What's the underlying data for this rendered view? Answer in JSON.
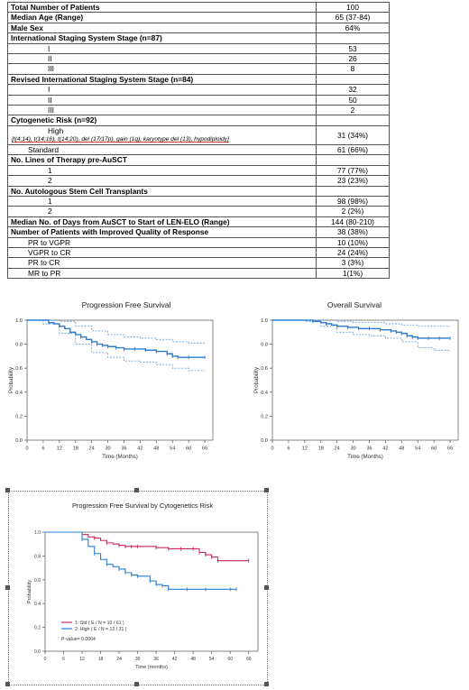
{
  "table": {
    "rows": [
      {
        "label": "Total Number of Patients",
        "value": "100",
        "style": "b"
      },
      {
        "label": "Median Age (Range)",
        "value": "65 (37-84)",
        "style": "b"
      },
      {
        "label": "Male Sex",
        "value": "64%",
        "style": "b"
      },
      {
        "label": "International Staging System Stage (n=87)",
        "value": "",
        "style": "b"
      },
      {
        "label": "I",
        "value": "53",
        "style": "i1"
      },
      {
        "label": "II",
        "value": "26",
        "style": "i1"
      },
      {
        "label": "III",
        "value": "8",
        "style": "i1"
      },
      {
        "label": "Revised International Staging System Stage (n=84)",
        "value": "",
        "style": "b"
      },
      {
        "label": "I",
        "value": "32",
        "style": "i1"
      },
      {
        "label": "II",
        "value": "50",
        "style": "i1"
      },
      {
        "label": "III",
        "value": "2",
        "style": "i1"
      },
      {
        "label": "Cytogenetic Risk (n=92)",
        "value": "",
        "style": "b"
      },
      {
        "label": "High",
        "value": "31 (34%)",
        "style": "high",
        "note": "[t(4;14), t(14;16), t(14;20), del (17/17p), gain (1q), karyotype del (13), hypodiploidy]"
      },
      {
        "label": "Standard",
        "value": "61 (66%)",
        "style": "i2"
      },
      {
        "label": "No. Lines of Therapy pre-AuSCT",
        "value": "",
        "style": "b"
      },
      {
        "label": "1",
        "value": "77 (77%)",
        "style": "i1"
      },
      {
        "label": "2",
        "value": "23 (23%)",
        "style": "i1"
      },
      {
        "label": "No. Autologous Stem Cell Transplants",
        "value": "",
        "style": "b"
      },
      {
        "label": "1",
        "value": "98 (98%)",
        "style": "i1"
      },
      {
        "label": "2",
        "value": "2 (2%)",
        "style": "i1"
      },
      {
        "label": "Median No. of Days from AuSCT to Start of LEN-ELO (Range)",
        "value": "144 (80-210)",
        "style": "b"
      },
      {
        "label": "Number of Patients with Improved Quality of Response",
        "value": "38 (38%)",
        "style": "b"
      },
      {
        "label": "PR to VGPR",
        "value": "10 (10%)",
        "style": "i2"
      },
      {
        "label": "VGPR to CR",
        "value": "24 (24%)",
        "style": "i2"
      },
      {
        "label": "PR to CR",
        "value": "3 (3%)",
        "style": "i2"
      },
      {
        "label": "MR to PR",
        "value": "1(1%)",
        "style": "i2"
      }
    ]
  },
  "chart_data": [
    {
      "type": "line",
      "title": "Progression Free Survival",
      "xlabel": "Time (Months)",
      "ylabel": "Probability",
      "xticks": [
        0,
        6,
        12,
        18,
        24,
        30,
        36,
        42,
        48,
        54,
        60,
        66
      ],
      "yticks": [
        "0.0",
        "0.2",
        "0.4",
        "0.6",
        "0.8",
        "1.0"
      ],
      "xlim": [
        0,
        69
      ],
      "ylim": [
        0,
        1
      ],
      "series": [
        {
          "x": [
            0,
            4,
            8,
            10,
            12,
            14,
            16,
            18,
            20,
            22,
            24,
            26,
            28,
            30,
            33,
            36,
            40,
            44,
            48,
            52,
            54,
            56,
            60,
            66
          ],
          "y": [
            1.0,
            1.0,
            0.98,
            0.97,
            0.95,
            0.93,
            0.9,
            0.88,
            0.86,
            0.84,
            0.82,
            0.8,
            0.79,
            0.78,
            0.77,
            0.76,
            0.76,
            0.75,
            0.74,
            0.72,
            0.7,
            0.69,
            0.69,
            0.69
          ]
        }
      ],
      "bands": [
        {
          "x": [
            0,
            6,
            12,
            18,
            24,
            30,
            36,
            42,
            48,
            54,
            60,
            66
          ],
          "y": [
            1.0,
            1.0,
            0.99,
            0.95,
            0.91,
            0.88,
            0.86,
            0.85,
            0.84,
            0.82,
            0.81,
            0.81
          ]
        },
        {
          "x": [
            0,
            6,
            12,
            18,
            24,
            30,
            36,
            42,
            48,
            54,
            60,
            66
          ],
          "y": [
            1.0,
            0.97,
            0.89,
            0.8,
            0.73,
            0.69,
            0.66,
            0.65,
            0.63,
            0.6,
            0.58,
            0.58
          ]
        }
      ],
      "color": "#2a7fd4"
    },
    {
      "type": "line",
      "title": "Overall Survival",
      "xlabel": "Time (Months)",
      "ylabel": "Probability",
      "xticks": [
        0,
        6,
        12,
        18,
        24,
        30,
        36,
        42,
        48,
        54,
        60,
        66
      ],
      "yticks": [
        "0.0",
        "0.2",
        "0.4",
        "0.6",
        "0.8",
        "1.0"
      ],
      "xlim": [
        0,
        69
      ],
      "ylim": [
        0,
        1
      ],
      "series": [
        {
          "x": [
            0,
            12,
            15,
            18,
            20,
            22,
            24,
            28,
            32,
            36,
            40,
            44,
            46,
            48,
            50,
            52,
            54,
            58,
            62,
            66
          ],
          "y": [
            1.0,
            1.0,
            0.99,
            0.98,
            0.97,
            0.96,
            0.95,
            0.94,
            0.93,
            0.93,
            0.92,
            0.91,
            0.9,
            0.89,
            0.87,
            0.86,
            0.85,
            0.85,
            0.85,
            0.85
          ]
        }
      ],
      "bands": [
        {
          "x": [
            0,
            12,
            18,
            24,
            30,
            36,
            42,
            48,
            54,
            60,
            66
          ],
          "y": [
            1.0,
            1.0,
            1.0,
            0.99,
            0.98,
            0.98,
            0.97,
            0.96,
            0.95,
            0.95,
            0.95
          ]
        },
        {
          "x": [
            0,
            12,
            18,
            24,
            30,
            36,
            42,
            48,
            54,
            60,
            66
          ],
          "y": [
            1.0,
            0.99,
            0.95,
            0.9,
            0.88,
            0.87,
            0.85,
            0.82,
            0.77,
            0.75,
            0.75
          ]
        }
      ],
      "color": "#2a7fd4"
    },
    {
      "type": "line",
      "title": "Progression Free Survival by Cytogenetics Risk",
      "xlabel": "Time (months)",
      "ylabel": "Probability",
      "xticks": [
        0,
        6,
        12,
        18,
        24,
        30,
        36,
        42,
        48,
        54,
        60,
        66
      ],
      "yticks": [
        "0.0",
        "0.2",
        "0.4",
        "0.6",
        "0.8",
        "1.0"
      ],
      "xlim": [
        0,
        69
      ],
      "ylim": [
        0,
        1
      ],
      "annotation": "P-value= 0.0064",
      "series": [
        {
          "name": "1: Std  ( E / N = 10 / 61 )",
          "color": "#c8285a",
          "x": [
            0,
            10,
            12,
            14,
            16,
            18,
            20,
            22,
            24,
            26,
            28,
            30,
            36,
            40,
            44,
            48,
            50,
            52,
            54,
            56,
            66
          ],
          "y": [
            1.0,
            1.0,
            0.98,
            0.96,
            0.95,
            0.93,
            0.91,
            0.9,
            0.89,
            0.88,
            0.88,
            0.88,
            0.87,
            0.86,
            0.86,
            0.86,
            0.83,
            0.81,
            0.79,
            0.76,
            0.76
          ]
        },
        {
          "name": "2: High  ( E / N = 12 / 31 )",
          "color": "#2a7fd4",
          "x": [
            0,
            10,
            12,
            14,
            16,
            18,
            20,
            22,
            24,
            26,
            28,
            30,
            34,
            36,
            38,
            40,
            46,
            52,
            60,
            62
          ],
          "y": [
            1.0,
            1.0,
            0.94,
            0.88,
            0.82,
            0.77,
            0.73,
            0.71,
            0.69,
            0.66,
            0.64,
            0.63,
            0.59,
            0.56,
            0.55,
            0.52,
            0.52,
            0.52,
            0.52,
            0.52
          ]
        }
      ]
    }
  ]
}
